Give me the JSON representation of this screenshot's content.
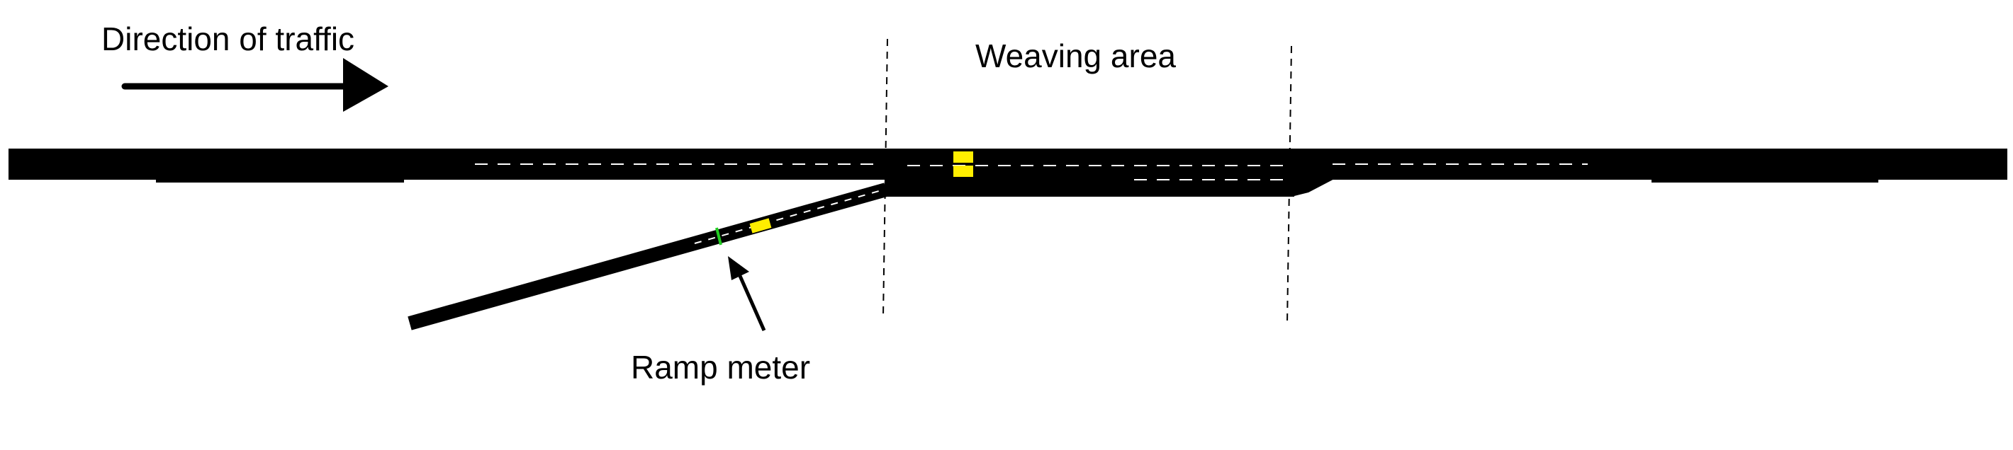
{
  "labels": {
    "direction_of_traffic": "Direction of traffic",
    "weaving_area": "Weaving area",
    "ramp_meter": "Ramp meter"
  },
  "colors": {
    "road": "#000000",
    "lane_marking": "#ffffff",
    "vehicle": "#ffee00",
    "signal_green": "#22cc22",
    "boundary_line": "#000000",
    "background": "#ffffff"
  },
  "icons": {
    "traffic_arrow": "arrow-right-icon",
    "ramp_pointer": "arrow-up-left-icon"
  }
}
